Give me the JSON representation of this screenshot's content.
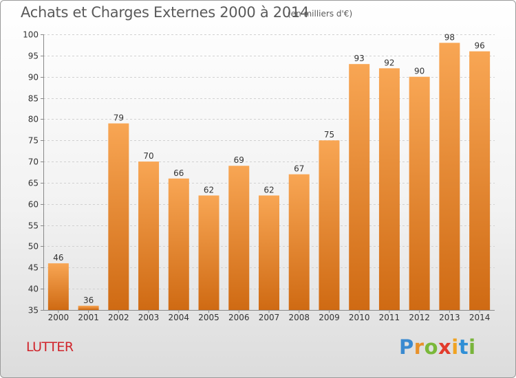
{
  "header": {
    "title": "Achats et Charges Externes 2000 à 2014",
    "subtitle": "(en milliers d'€)"
  },
  "footer": {
    "commune": "LUTTER",
    "logo_letters": [
      "P",
      "r",
      "o",
      "x",
      "i",
      "t",
      "i"
    ],
    "logo_colors": [
      "#3a8ad0",
      "#e8912a",
      "#7ab839",
      "#e23b2c",
      "#f0a322",
      "#2f8fd6",
      "#78b43a"
    ]
  },
  "colors": {
    "bar_top": "#f8a654",
    "bar_bottom": "#cf6a13",
    "grid": "#d0d0d0",
    "axis_text": "#333333",
    "commune": "#d0242b"
  },
  "chart_data": {
    "type": "bar",
    "title": "Achats et Charges Externes 2000 à 2014",
    "subtitle": "(en milliers d'€)",
    "categories": [
      "2000",
      "2001",
      "2002",
      "2003",
      "2004",
      "2005",
      "2006",
      "2007",
      "2008",
      "2009",
      "2010",
      "2011",
      "2012",
      "2013",
      "2014"
    ],
    "values": [
      46,
      36,
      79,
      70,
      66,
      62,
      69,
      62,
      67,
      75,
      93,
      92,
      90,
      98,
      96
    ],
    "ylim": [
      35,
      100
    ],
    "yticks": [
      35,
      40,
      45,
      50,
      55,
      60,
      65,
      70,
      75,
      80,
      85,
      90,
      95,
      100
    ],
    "grid": true,
    "data_labels": true
  }
}
